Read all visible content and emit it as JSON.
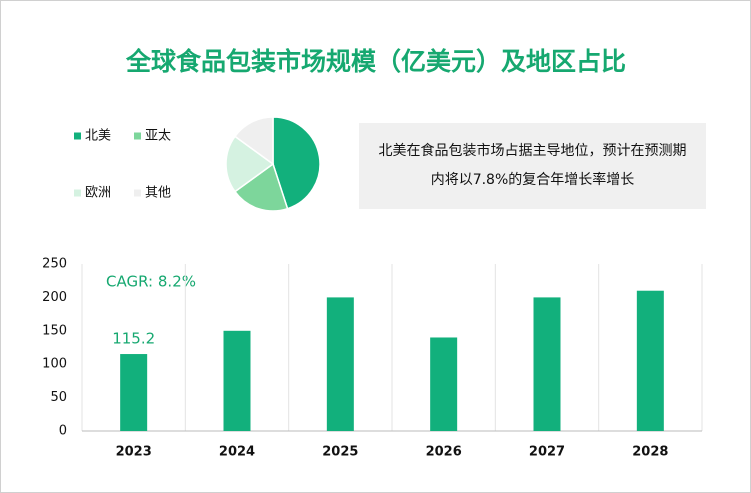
{
  "chart_data": [
    {
      "type": "pie",
      "title": "全球食品包装市场规模（亿美元）及地区占比",
      "annotation": "北美在食品包装市场占据主导地位，预计在预测期内将以7.8%的复合年增长率增长",
      "categories": [
        "北美",
        "亚太",
        "欧洲",
        "其他"
      ],
      "values": [
        45,
        20,
        20,
        15
      ],
      "colors": [
        "#12b07c",
        "#7dd69b",
        "#d5f2e1",
        "#efefef"
      ]
    },
    {
      "type": "bar",
      "annotation": "CAGR: 8.2%",
      "categories": [
        "2023",
        "2024",
        "2025",
        "2026",
        "2027",
        "2028"
      ],
      "values": [
        115.2,
        150,
        200,
        140,
        200,
        210
      ],
      "value_labels": [
        "115.2",
        null,
        null,
        null,
        null,
        null
      ],
      "color": "#12b07c",
      "ylim": [
        0,
        250
      ],
      "yticks": [
        0,
        50,
        100,
        150,
        200,
        250
      ],
      "grid": true
    }
  ]
}
